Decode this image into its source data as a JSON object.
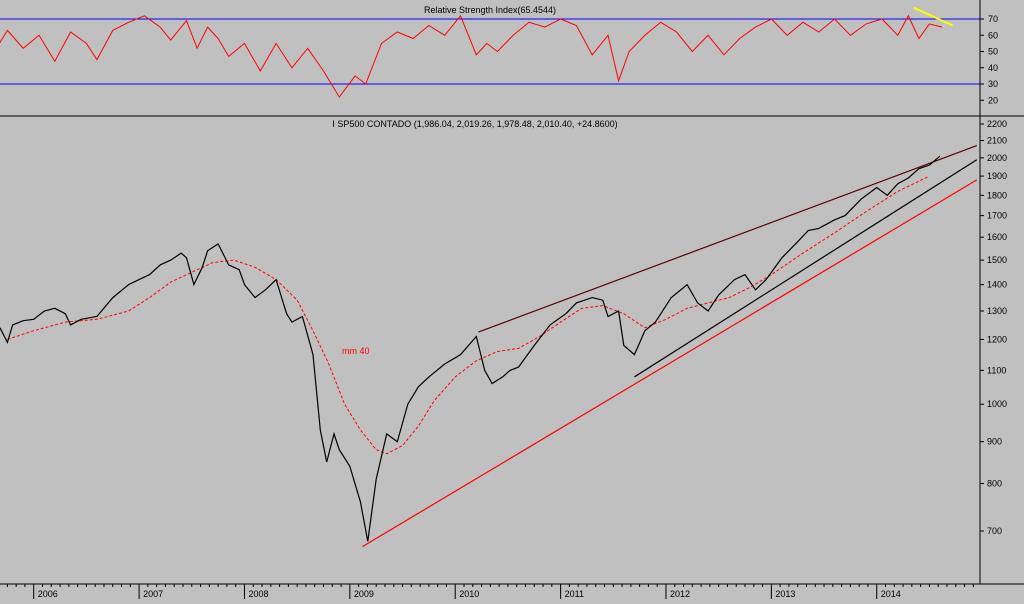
{
  "chart_data": [
    {
      "type": "line",
      "title": "Relative Strength Index(65.4544)",
      "ylim": [
        10,
        80
      ],
      "y_ticks": [
        20,
        30,
        40,
        50,
        60,
        70
      ],
      "reference_lines": [
        {
          "value": 70,
          "color": "#0000ff"
        },
        {
          "value": 30,
          "color": "#0000ff"
        }
      ],
      "x": [
        2005.45,
        2005.58,
        2005.75,
        2005.9,
        2006.05,
        2006.2,
        2006.35,
        2006.5,
        2006.6,
        2006.75,
        2006.9,
        2007.05,
        2007.2,
        2007.3,
        2007.45,
        2007.55,
        2007.65,
        2007.75,
        2007.85,
        2008.0,
        2008.15,
        2008.3,
        2008.45,
        2008.6,
        2008.75,
        2008.9,
        2009.05,
        2009.15,
        2009.3,
        2009.45,
        2009.6,
        2009.75,
        2009.9,
        2010.05,
        2010.2,
        2010.3,
        2010.4,
        2010.55,
        2010.7,
        2010.85,
        2011.0,
        2011.15,
        2011.3,
        2011.45,
        2011.55,
        2011.65,
        2011.8,
        2011.95,
        2012.1,
        2012.25,
        2012.4,
        2012.55,
        2012.7,
        2012.85,
        2013.0,
        2013.15,
        2013.3,
        2013.45,
        2013.6,
        2013.75,
        2013.9,
        2014.05,
        2014.2,
        2014.3,
        2014.4,
        2014.5,
        2014.62
      ],
      "values": [
        58,
        45,
        63,
        52,
        60,
        44,
        62,
        55,
        45,
        63,
        68,
        72,
        65,
        57,
        69,
        52,
        65,
        58,
        47,
        55,
        38,
        55,
        40,
        52,
        38,
        22,
        35,
        30,
        55,
        62,
        58,
        66,
        60,
        72,
        48,
        55,
        50,
        60,
        68,
        65,
        70,
        66,
        48,
        60,
        32,
        50,
        60,
        68,
        62,
        50,
        60,
        48,
        58,
        65,
        70,
        60,
        68,
        62,
        70,
        60,
        67,
        70,
        60,
        72,
        58,
        67,
        65
      ],
      "series": [
        {
          "color": "#ff0000"
        }
      ],
      "trendline": {
        "x": [
          2014.35,
          2014.72
        ],
        "y": [
          77,
          66
        ],
        "color": "#ffff00"
      }
    },
    {
      "type": "line",
      "title": "I SP500 CONTADO (1,986.04, 2,019.26, 1,978.48, 2,010.40, +24.8600)",
      "scale": "log",
      "ylim": [
        640,
        2200
      ],
      "y_ticks": [
        700,
        800,
        900,
        1000,
        1100,
        1200,
        1300,
        1400,
        1500,
        1600,
        1700,
        1800,
        1900,
        2000,
        2100,
        2200
      ],
      "x_ticks": [
        "2006",
        "2007",
        "2008",
        "2009",
        "2010",
        "2011",
        "2012",
        "2013",
        "2014"
      ],
      "x_tick_positions": [
        2006,
        2007,
        2008,
        2009,
        2010,
        2011,
        2012,
        2013,
        2014
      ],
      "xlim": [
        2005.68,
        2014.98
      ],
      "series": [
        {
          "color": "#000000",
          "x": [
            2005.68,
            2005.75,
            2005.8,
            2005.9,
            2006.0,
            2006.1,
            2006.2,
            2006.3,
            2006.35,
            2006.45,
            2006.6,
            2006.75,
            2006.9,
            2007.0,
            2007.1,
            2007.2,
            2007.3,
            2007.4,
            2007.45,
            2007.52,
            2007.6,
            2007.65,
            2007.75,
            2007.85,
            2007.95,
            2008.0,
            2008.1,
            2008.2,
            2008.3,
            2008.4,
            2008.45,
            2008.55,
            2008.65,
            2008.72,
            2008.78,
            2008.85,
            2008.9,
            2009.0,
            2009.1,
            2009.17,
            2009.25,
            2009.35,
            2009.45,
            2009.55,
            2009.65,
            2009.75,
            2009.9,
            2010.05,
            2010.2,
            2010.28,
            2010.35,
            2010.45,
            2010.52,
            2010.6,
            2010.75,
            2010.9,
            2011.05,
            2011.15,
            2011.3,
            2011.4,
            2011.45,
            2011.55,
            2011.6,
            2011.7,
            2011.8,
            2011.9,
            2012.05,
            2012.2,
            2012.3,
            2012.4,
            2012.5,
            2012.65,
            2012.75,
            2012.85,
            2012.95,
            2013.1,
            2013.25,
            2013.35,
            2013.45,
            2013.6,
            2013.7,
            2013.85,
            2014.0,
            2014.1,
            2014.2,
            2014.3,
            2014.4,
            2014.5,
            2014.6
          ],
          "values": [
            1240,
            1190,
            1250,
            1265,
            1270,
            1300,
            1310,
            1290,
            1250,
            1270,
            1280,
            1350,
            1400,
            1420,
            1440,
            1480,
            1500,
            1530,
            1510,
            1400,
            1470,
            1540,
            1570,
            1480,
            1460,
            1400,
            1350,
            1380,
            1420,
            1290,
            1260,
            1280,
            1150,
            930,
            850,
            920,
            880,
            840,
            760,
            680,
            810,
            920,
            900,
            1000,
            1050,
            1080,
            1120,
            1150,
            1210,
            1100,
            1060,
            1080,
            1100,
            1110,
            1180,
            1250,
            1290,
            1330,
            1350,
            1340,
            1280,
            1300,
            1180,
            1150,
            1230,
            1260,
            1350,
            1400,
            1330,
            1300,
            1360,
            1420,
            1440,
            1380,
            1420,
            1510,
            1580,
            1630,
            1640,
            1680,
            1700,
            1780,
            1840,
            1800,
            1860,
            1890,
            1940,
            1960,
            2010
          ]
        }
      ],
      "moving_average": {
        "label": "mm 40",
        "color": "#ff0000",
        "x": [
          2005.75,
          2006.0,
          2006.3,
          2006.6,
          2006.9,
          2007.1,
          2007.3,
          2007.5,
          2007.7,
          2007.9,
          2008.1,
          2008.3,
          2008.5,
          2008.65,
          2008.8,
          2008.95,
          2009.1,
          2009.25,
          2009.35,
          2009.5,
          2009.65,
          2009.8,
          2010.0,
          2010.2,
          2010.4,
          2010.6,
          2010.8,
          2011.0,
          2011.2,
          2011.4,
          2011.6,
          2011.8,
          2012.0,
          2012.2,
          2012.4,
          2012.6,
          2012.8,
          2013.0,
          2013.3,
          2013.6,
          2013.9,
          2014.2,
          2014.5
        ],
        "values": [
          1200,
          1230,
          1260,
          1270,
          1300,
          1350,
          1410,
          1450,
          1490,
          1500,
          1470,
          1420,
          1340,
          1230,
          1120,
          1000,
          930,
          880,
          870,
          890,
          940,
          1010,
          1080,
          1130,
          1160,
          1170,
          1210,
          1260,
          1310,
          1320,
          1290,
          1240,
          1270,
          1310,
          1330,
          1350,
          1390,
          1440,
          1530,
          1620,
          1720,
          1820,
          1900
        ]
      },
      "trendlines": [
        {
          "x": [
            2010.22,
            2014.95
          ],
          "y": [
            1225,
            2070
          ],
          "color": "#5a0000"
        },
        {
          "x": [
            2011.7,
            2014.95
          ],
          "y": [
            1080,
            1990
          ],
          "color": "#000000"
        },
        {
          "x": [
            2009.12,
            2014.95
          ],
          "y": [
            670,
            1880
          ],
          "color": "#ff0000"
        }
      ]
    }
  ]
}
